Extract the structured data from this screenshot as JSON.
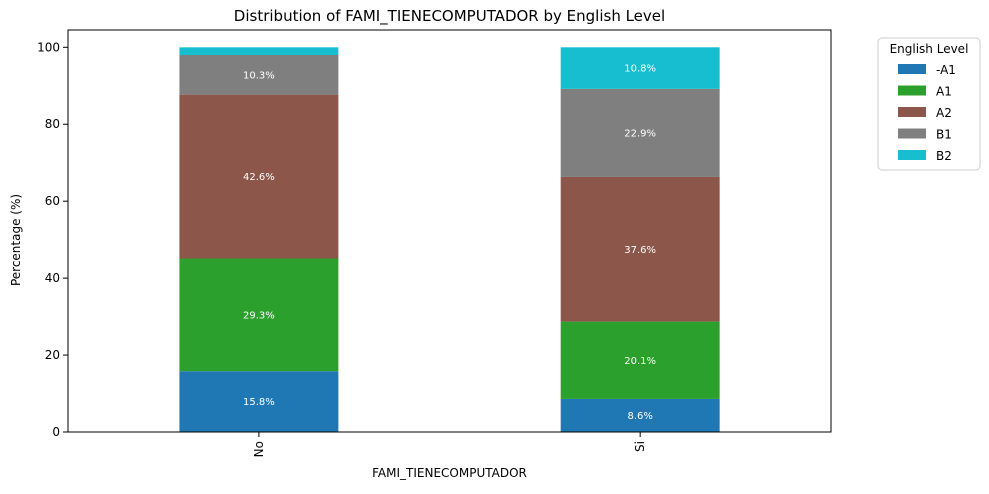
{
  "chart_data": {
    "type": "bar",
    "stacked": true,
    "title": "Distribution of FAMI_TIENECOMPUTADOR by English Level",
    "xlabel": "FAMI_TIENECOMPUTADOR",
    "ylabel": "Percentage (%)",
    "ylim": [
      0,
      104.5
    ],
    "yticks": [
      0,
      20,
      40,
      60,
      80,
      100
    ],
    "categories": [
      "No",
      "Si"
    ],
    "legend": {
      "title": "English Level",
      "placement": "outside-upper-right"
    },
    "series": [
      {
        "name": "-A1",
        "color": "#1f77b4",
        "values": [
          15.8,
          8.6
        ],
        "labels": [
          "15.8%",
          "8.6%"
        ]
      },
      {
        "name": "A1",
        "color": "#2ca02c",
        "values": [
          29.3,
          20.1
        ],
        "labels": [
          "29.3%",
          "20.1%"
        ]
      },
      {
        "name": "A2",
        "color": "#8c564b",
        "values": [
          42.6,
          37.6
        ],
        "labels": [
          "42.6%",
          "37.6%"
        ]
      },
      {
        "name": "B1",
        "color": "#7f7f7f",
        "values": [
          10.3,
          22.9
        ],
        "labels": [
          "10.3%",
          "22.9%"
        ]
      },
      {
        "name": "B2",
        "color": "#17becf",
        "values": [
          2.0,
          10.8
        ],
        "labels": [
          "",
          "10.8%"
        ]
      }
    ]
  }
}
